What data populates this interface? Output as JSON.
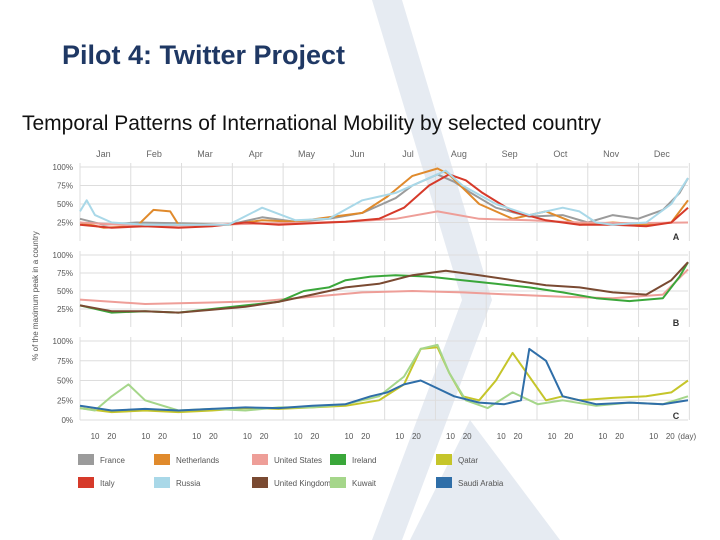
{
  "slide": {
    "title": "Pilot 4: Twitter Project",
    "subtitle": "Temporal Patterns of International Mobility by selected  country"
  },
  "colors": {
    "background": "#ffffff",
    "title": "#1f3864",
    "decor_chevron": "#e6ebf2"
  },
  "chart_data": {
    "type": "line",
    "ylabel": "% of the maximum peak in a country",
    "months": [
      "Jan",
      "Feb",
      "Mar",
      "Apr",
      "May",
      "Jun",
      "Jul",
      "Aug",
      "Sep",
      "Oct",
      "Nov",
      "Dec"
    ],
    "day_ticks": [
      "10",
      "20",
      "10",
      "20",
      "10",
      "20",
      "10",
      "20",
      "10",
      "20",
      "10",
      "20",
      "10",
      "20",
      "10",
      "20",
      "10",
      "20",
      "10",
      "20",
      "10",
      "20",
      "10",
      "20"
    ],
    "day_unit": "(day)",
    "x_domain": [
      1,
      365
    ],
    "legend": [
      {
        "name": "France",
        "color": "#9b9b9b"
      },
      {
        "name": "Netherlands",
        "color": "#e08a2c"
      },
      {
        "name": "United States",
        "color": "#ee9e98"
      },
      {
        "name": "Ireland",
        "color": "#3aa73a"
      },
      {
        "name": "Qatar",
        "color": "#c5c52a"
      },
      {
        "name": "Italy",
        "color": "#d63a2a"
      },
      {
        "name": "Russia",
        "color": "#a9d8e8"
      },
      {
        "name": "United Kingdom",
        "color": "#7a4a32"
      },
      {
        "name": "Kuwait",
        "color": "#a5d68a"
      },
      {
        "name": "Saudi Arabia",
        "color": "#2f6ea8"
      }
    ],
    "panels": [
      {
        "label": "A",
        "yticks": [
          "100%",
          "75%",
          "50%",
          "25%"
        ],
        "series": [
          {
            "name": "France",
            "color": "#9b9b9b",
            "x": [
              1,
              15,
              35,
              60,
              90,
              110,
              130,
              150,
              170,
              190,
              200,
              215,
              225,
              235,
              250,
              270,
              290,
              305,
              320,
              335,
              350,
              360,
              365
            ],
            "y": [
              30,
              22,
              25,
              24,
              22,
              32,
              26,
              30,
              38,
              58,
              75,
              90,
              80,
              65,
              45,
              33,
              35,
              25,
              35,
              30,
              42,
              65,
              85
            ]
          },
          {
            "name": "Netherlands",
            "color": "#e08a2c",
            "x": [
              1,
              15,
              35,
              45,
              55,
              60,
              90,
              110,
              130,
              150,
              170,
              185,
              200,
              215,
              222,
              230,
              240,
              260,
              280,
              300,
              320,
              340,
              355,
              365
            ],
            "y": [
              25,
              18,
              20,
              42,
              40,
              22,
              22,
              28,
              26,
              32,
              38,
              60,
              88,
              98,
              90,
              72,
              50,
              30,
              40,
              22,
              25,
              22,
              25,
              55
            ]
          },
          {
            "name": "United States",
            "color": "#ee9e98",
            "x": [
              1,
              40,
              80,
              120,
              160,
              190,
              215,
              240,
              270,
              300,
              330,
              365
            ],
            "y": [
              25,
              20,
              22,
              24,
              26,
              30,
              40,
              30,
              28,
              25,
              24,
              25
            ]
          },
          {
            "name": "Italy",
            "color": "#d63a2a",
            "x": [
              1,
              20,
              40,
              60,
              80,
              100,
              120,
              140,
              160,
              180,
              195,
              210,
              222,
              232,
              242,
              260,
              280,
              300,
              320,
              340,
              355,
              365
            ],
            "y": [
              22,
              18,
              20,
              18,
              20,
              25,
              22,
              24,
              26,
              30,
              45,
              75,
              90,
              82,
              65,
              40,
              28,
              22,
              22,
              20,
              25,
              45
            ]
          },
          {
            "name": "Russia",
            "color": "#a9d8e8",
            "x": [
              1,
              5,
              10,
              20,
              40,
              60,
              90,
              110,
              130,
              150,
              170,
              190,
              210,
              220,
              230,
              250,
              270,
              290,
              300,
              310,
              320,
              340,
              355,
              365
            ],
            "y": [
              40,
              55,
              35,
              25,
              22,
              22,
              22,
              45,
              28,
              30,
              55,
              65,
              85,
              95,
              75,
              50,
              35,
              45,
              40,
              25,
              22,
              25,
              50,
              85
            ]
          }
        ]
      },
      {
        "label": "B",
        "yticks": [
          "100%",
          "75%",
          "50%",
          "25%"
        ],
        "series": [
          {
            "name": "United States",
            "color": "#ee9e98",
            "x": [
              1,
              40,
              80,
              110,
              140,
              170,
              200,
              230,
              260,
              290,
              320,
              350,
              365
            ],
            "y": [
              38,
              32,
              34,
              36,
              42,
              48,
              50,
              48,
              45,
              42,
              40,
              45,
              80
            ]
          },
          {
            "name": "Ireland",
            "color": "#3aa73a",
            "x": [
              1,
              20,
              40,
              60,
              80,
              100,
              120,
              135,
              150,
              160,
              175,
              190,
              210,
              230,
              250,
              270,
              290,
              310,
              330,
              350,
              360,
              365
            ],
            "y": [
              30,
              20,
              22,
              20,
              25,
              30,
              35,
              50,
              55,
              65,
              70,
              72,
              70,
              65,
              60,
              55,
              48,
              40,
              36,
              40,
              70,
              90
            ]
          },
          {
            "name": "United Kingdom",
            "color": "#7a4a32",
            "x": [
              1,
              20,
              40,
              60,
              80,
              100,
              120,
              140,
              160,
              180,
              200,
              220,
              240,
              260,
              280,
              300,
              320,
              340,
              355,
              365
            ],
            "y": [
              30,
              22,
              22,
              20,
              24,
              28,
              35,
              45,
              55,
              60,
              72,
              78,
              72,
              65,
              58,
              55,
              48,
              45,
              65,
              90
            ]
          }
        ]
      },
      {
        "label": "C",
        "yticks": [
          "100%",
          "75%",
          "50%",
          "25%",
          "0%"
        ],
        "series": [
          {
            "name": "Qatar",
            "color": "#c5c52a",
            "x": [
              1,
              20,
              40,
              60,
              80,
              100,
              120,
              140,
              160,
              180,
              195,
              205,
              215,
              222,
              230,
              240,
              250,
              260,
              270,
              280,
              290,
              300,
              320,
              340,
              355,
              365
            ],
            "y": [
              15,
              10,
              12,
              10,
              12,
              15,
              14,
              16,
              18,
              25,
              45,
              90,
              92,
              60,
              30,
              25,
              50,
              85,
              55,
              25,
              30,
              25,
              28,
              30,
              35,
              50
            ]
          },
          {
            "name": "Kuwait",
            "color": "#a5d68a",
            "x": [
              1,
              10,
              20,
              30,
              40,
              60,
              80,
              100,
              120,
              140,
              160,
              180,
              195,
              205,
              215,
              222,
              232,
              245,
              260,
              275,
              290,
              310,
              330,
              350,
              365
            ],
            "y": [
              15,
              12,
              30,
              45,
              25,
              12,
              14,
              12,
              16,
              16,
              20,
              30,
              55,
              90,
              95,
              60,
              25,
              15,
              35,
              20,
              25,
              18,
              22,
              20,
              30
            ]
          },
          {
            "name": "Saudi Arabia",
            "color": "#2f6ea8",
            "x": [
              1,
              20,
              40,
              60,
              80,
              100,
              120,
              140,
              160,
              175,
              185,
              195,
              205,
              215,
              225,
              240,
              255,
              265,
              270,
              280,
              290,
              310,
              330,
              350,
              365
            ],
            "y": [
              18,
              12,
              14,
              12,
              14,
              16,
              15,
              18,
              20,
              30,
              35,
              45,
              50,
              40,
              30,
              22,
              20,
              25,
              90,
              75,
              30,
              20,
              22,
              20,
              25
            ]
          }
        ]
      }
    ]
  }
}
